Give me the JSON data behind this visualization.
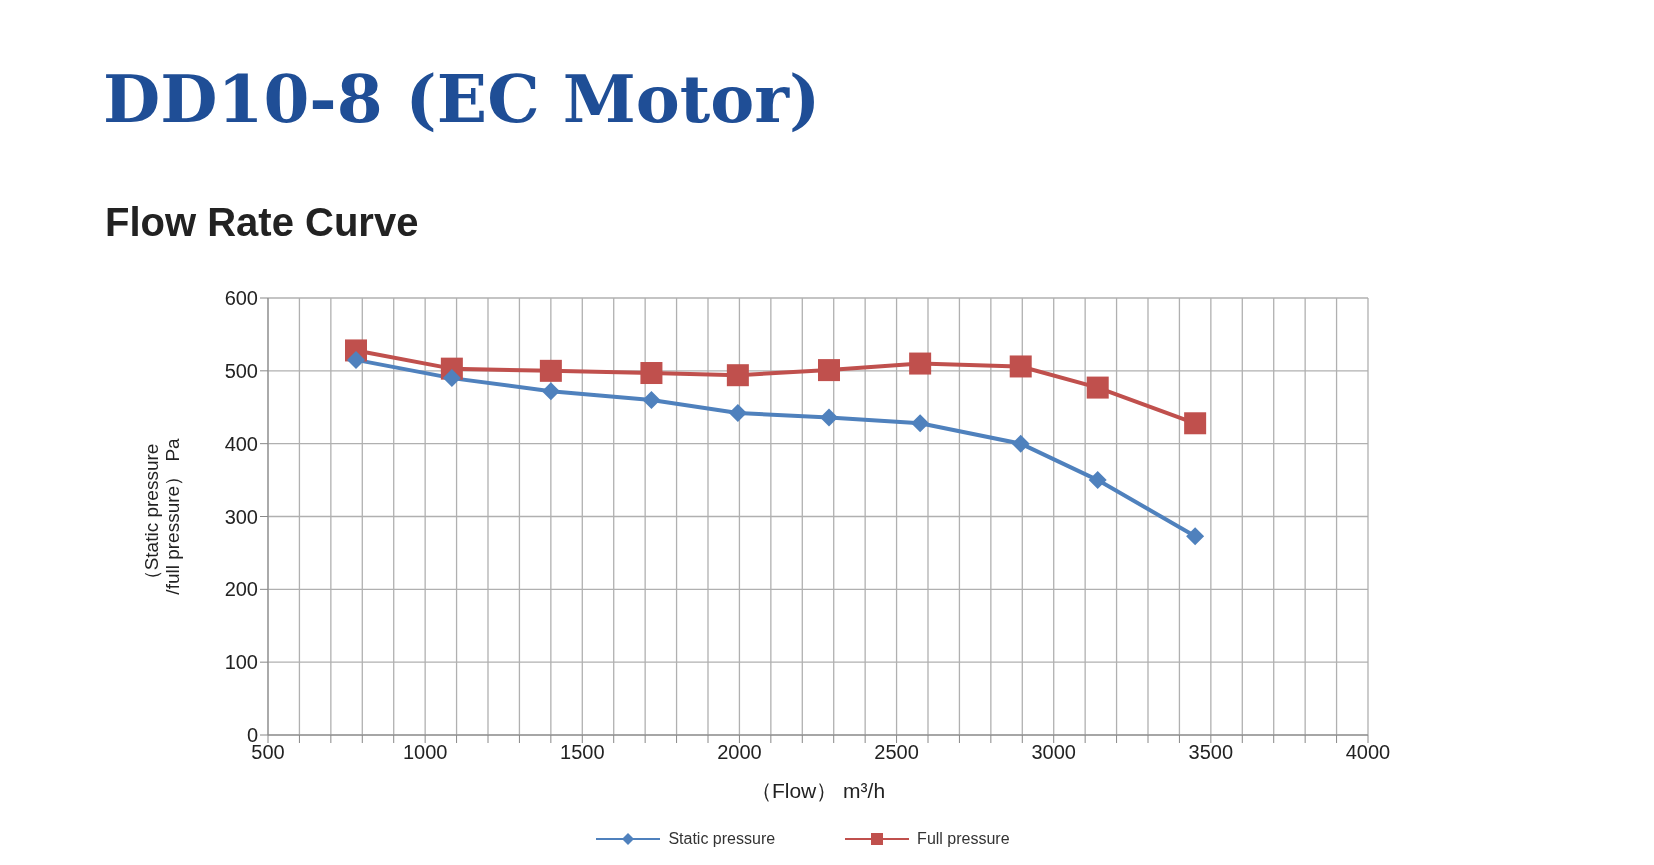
{
  "chart_data": {
    "type": "line",
    "title": "DD10-8 (EC Motor)",
    "subtitle": "Flow Rate Curve",
    "xlabel": "（Flow） m³/h",
    "ylabel": "（Static pressure /full pressure） Pa",
    "x": [
      780,
      1085,
      1400,
      1720,
      1995,
      2285,
      2575,
      2895,
      3140,
      3450
    ],
    "series": [
      {
        "name": "Static pressure",
        "color": "#4f81bd",
        "marker": "diamond",
        "values": [
          515,
          490,
          472,
          460,
          442,
          436,
          428,
          400,
          350,
          273
        ]
      },
      {
        "name": "Full pressure",
        "color": "#c0504d",
        "marker": "square",
        "values": [
          528,
          503,
          500,
          497,
          494,
          501,
          510,
          506,
          477,
          428
        ]
      }
    ],
    "xlim": [
      500,
      4000
    ],
    "xticks": [
      500,
      {
        "value": 600,
        "label": null
      },
      {
        "value": 700,
        "label": null
      },
      {
        "value": 800,
        "label": null
      },
      {
        "value": 900,
        "label": null
      },
      1000,
      {
        "value": 1100,
        "label": null
      },
      {
        "value": 1200,
        "label": null
      },
      {
        "value": 1300,
        "label": null
      },
      {
        "value": 1400,
        "label": null
      },
      1500,
      {
        "value": 1600,
        "label": null
      },
      {
        "value": 1700,
        "label": null
      },
      {
        "value": 1800,
        "label": null
      },
      {
        "value": 1900,
        "label": null
      },
      2000,
      {
        "value": 2100,
        "label": null
      },
      {
        "value": 2200,
        "label": null
      },
      {
        "value": 2300,
        "label": null
      },
      {
        "value": 2400,
        "label": null
      },
      2500,
      {
        "value": 2600,
        "label": null
      },
      {
        "value": 2700,
        "label": null
      },
      {
        "value": 2800,
        "label": null
      },
      {
        "value": 2900,
        "label": null
      },
      3000,
      {
        "value": 3100,
        "label": null
      },
      {
        "value": 3200,
        "label": null
      },
      {
        "value": 3300,
        "label": null
      },
      {
        "value": 3400,
        "label": null
      },
      3500,
      {
        "value": 3600,
        "label": null
      },
      {
        "value": 3700,
        "label": null
      },
      {
        "value": 3800,
        "label": null
      },
      {
        "value": 3900,
        "label": null
      },
      4000
    ],
    "ylim": [
      0,
      600
    ],
    "yticks": [
      0,
      100,
      200,
      300,
      400,
      500,
      600
    ],
    "grid": true,
    "legend": "bottom",
    "line_style": "solid"
  }
}
